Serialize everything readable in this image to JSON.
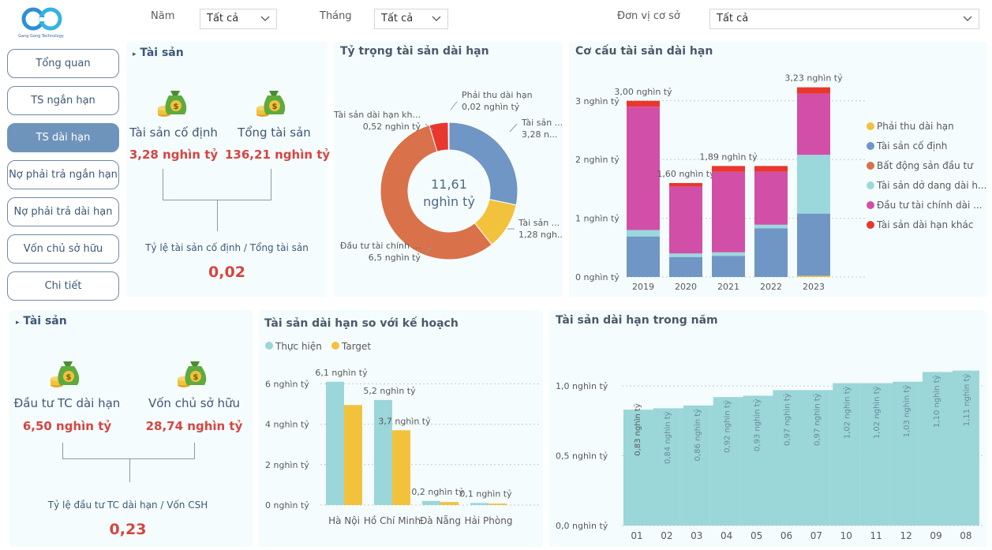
{
  "logo": {
    "text": "Gang Gang Technology"
  },
  "filters": [
    {
      "label": "Năm",
      "value": "Tất cả"
    },
    {
      "label": "Tháng",
      "value": "Tất cả"
    },
    {
      "label": "Đơn vị cơ sở",
      "value": "Tất cả"
    }
  ],
  "nav": [
    {
      "label": "Tổng quan"
    },
    {
      "label": "TS ngắn hạn"
    },
    {
      "label": "TS dài hạn"
    },
    {
      "label": "Nợ phải trả ngắn hạn"
    },
    {
      "label": "Nợ phải trả dài hạn"
    },
    {
      "label": "Vốn chủ sở hữu"
    },
    {
      "label": "Chi tiết"
    }
  ],
  "card1": {
    "title": "Tài sản",
    "kpis": [
      {
        "label": "Tài sản cố định",
        "value": "3,28 nghìn tỷ"
      },
      {
        "label": "Tổng tài sản",
        "value": "136,21 nghìn tỷ"
      }
    ],
    "ratio_label": "Tỷ lệ tài sản cố định / Tổng tài sản",
    "ratio_value": "0,02"
  },
  "card2": {
    "title": "Tài sản",
    "kpis": [
      {
        "label": "Đầu tư TC dài hạn",
        "value": "6,50 nghìn tỷ"
      },
      {
        "label": "Vốn chủ sở hữu",
        "value": "28,74 nghìn tỷ"
      }
    ],
    "ratio_label": "Tỷ lệ đầu tư TC dài hạn / Vốn CSH",
    "ratio_value": "0,23"
  },
  "colors": {
    "receivable": "#f2c23d",
    "fixed": "#6f96c4",
    "realestate": "#d9714a",
    "construction": "#9bd8dc",
    "financial": "#d24fa8",
    "other": "#e8372e",
    "actual": "#9bd6d9",
    "target": "#f2c23d"
  },
  "chart_data": [
    {
      "type": "pie",
      "title": "Tỷ trọng tài sản dài hạn",
      "center_value": "11,61",
      "center_unit": "nghìn tỷ",
      "slices": [
        {
          "name": "Tài sản ...",
          "value": 3.28,
          "label": "3,28 n...",
          "color": "#6f96c4"
        },
        {
          "name": "Tài sản ...",
          "value": 1.28,
          "label": "1,28 ngh...",
          "color": "#f2c23d"
        },
        {
          "name": "Đầu tư tài chính ...",
          "value": 6.5,
          "label": "6,5 nghìn tỷ",
          "color": "#d9714a"
        },
        {
          "name": "Tài sản dài hạn kh...",
          "value": 0.52,
          "label": "0,52 nghìn tỷ",
          "color": "#e8372e"
        },
        {
          "name": "Phải thu dài hạn",
          "value": 0.02,
          "label": "0,02 nghìn tỷ",
          "color": "#f2c23d"
        }
      ]
    },
    {
      "type": "bar",
      "title": "Cơ cấu tài sản dài hạn",
      "stacked": true,
      "categories": [
        "2019",
        "2020",
        "2021",
        "2022",
        "2023"
      ],
      "yticks": [
        "0 nghìn tỷ",
        "1 nghìn tỷ",
        "2 nghìn tỷ",
        "3 nghìn tỷ"
      ],
      "ylim": [
        0,
        3.4
      ],
      "totals": [
        "3,00 nghìn tỷ",
        "1,60 nghìn tỷ",
        "1,89 nghìn tỷ",
        "",
        "3,23 nghìn tỷ"
      ],
      "series": [
        {
          "name": "Phải thu dài hạn",
          "values": [
            0,
            0,
            0,
            0,
            0.02
          ],
          "color": "#f2c23d"
        },
        {
          "name": "Tài sản cố định",
          "values": [
            0.69,
            0.34,
            0.36,
            0.83,
            1.06
          ],
          "color": "#6f96c4"
        },
        {
          "name": "Bất động sản đầu tư",
          "values": [
            0,
            0,
            0,
            0,
            0
          ],
          "color": "#d9714a"
        },
        {
          "name": "Tài sản dở dang dài h...",
          "values": [
            0.11,
            0.06,
            0.06,
            0.06,
            1.0
          ],
          "color": "#9bd8dc"
        },
        {
          "name": "Đầu tư tài chính dài ...",
          "values": [
            2.1,
            1.14,
            1.37,
            0.9,
            1.04
          ],
          "color": "#d24fa8"
        },
        {
          "name": "Tài sản dài hạn khác",
          "values": [
            0.1,
            0.06,
            0.1,
            0.1,
            0.11
          ],
          "color": "#e8372e"
        }
      ]
    },
    {
      "type": "bar",
      "title": "Tài sản dài hạn so với kế hoạch",
      "categories": [
        "Hà Nội",
        "Hồ Chí Minh",
        "Đà Nẵng",
        "Hải Phòng"
      ],
      "yticks": [
        "0 nghìn tỷ",
        "2 nghìn tỷ",
        "4 nghìn tỷ",
        "6 nghìn tỷ"
      ],
      "ylim": [
        0,
        6.6
      ],
      "series": [
        {
          "name": "Thực hiện",
          "values": [
            6.1,
            5.2,
            0.2,
            0.1
          ],
          "labels": [
            "6,1 nghìn tỷ",
            "5,2 nghìn tỷ",
            "0,2 nghìn tỷ",
            "0,1 nghìn tỷ"
          ],
          "color": "#9bd6d9"
        },
        {
          "name": "Target",
          "values": [
            4.95,
            3.7,
            0.15,
            0.07
          ],
          "labels": [
            "",
            "3,7 nghìn tỷ",
            "",
            ""
          ],
          "color": "#f2c23d"
        }
      ]
    },
    {
      "type": "bar",
      "title": "Tài sản dài hạn trong năm",
      "categories": [
        "01",
        "02",
        "03",
        "04",
        "05",
        "06",
        "07",
        "10",
        "11",
        "12",
        "09",
        "08"
      ],
      "values": [
        0.83,
        0.84,
        0.86,
        0.92,
        0.93,
        0.97,
        0.97,
        1.02,
        1.02,
        1.03,
        1.1,
        1.11
      ],
      "labels": [
        "0,83 nghìn tỷ",
        "0,84 nghìn tỷ",
        "0,86 nghìn tỷ",
        "0,92 nghìn tỷ",
        "0,93 nghìn tỷ",
        "0,97 nghìn tỷ",
        "0,97 nghìn tỷ",
        "1,02 nghìn tỷ",
        "1,02 nghìn tỷ",
        "1,03 nghìn tỷ",
        "1,10 nghìn tỷ",
        "1,11 nghìn tỷ"
      ],
      "yticks": [
        "0,0 nghìn tỷ",
        "0,5 nghìn tỷ",
        "1,0 nghìn tỷ"
      ],
      "ylim": [
        0,
        1.3
      ],
      "color": "#9bd6d9"
    }
  ]
}
